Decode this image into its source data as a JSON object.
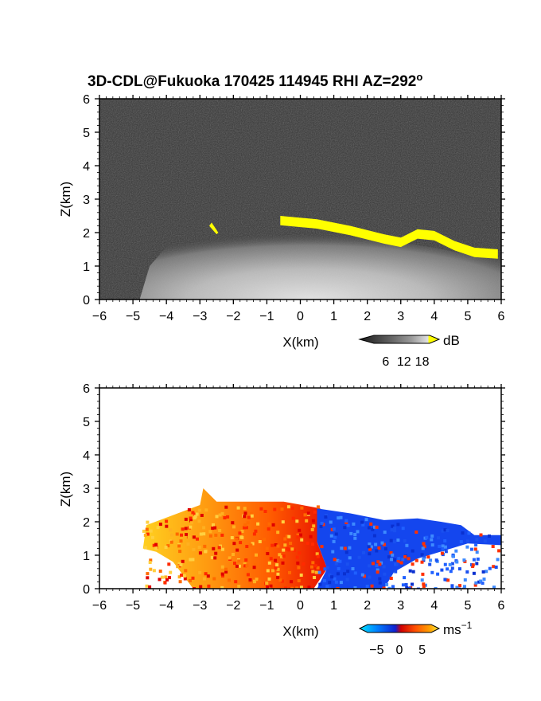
{
  "chart_data": [
    {
      "type": "heatmap",
      "title": "3D-CDL@Fukuoka 170425 114945 RHI AZ=292",
      "title_superscript": "o",
      "xlabel": "X(km)",
      "ylabel": "Z(km)",
      "xlim": [
        -6,
        6
      ],
      "ylim": [
        0,
        6
      ],
      "xticks": [
        "-6",
        "-5",
        "-4",
        "-3",
        "-2",
        "-1",
        "0",
        "1",
        "2",
        "3",
        "4",
        "5",
        "6"
      ],
      "yticks": [
        "0",
        "1",
        "2",
        "3",
        "4",
        "5",
        "6"
      ],
      "background": "grayscale noise",
      "colorbar": {
        "label": "dB",
        "ticks": [
          "6",
          "12",
          "18"
        ],
        "range": [
          0,
          21
        ],
        "colors": [
          "#1a1a1a",
          "#5a5a5a",
          "#9a9a9a",
          "#d8d8d8",
          "#ffff00"
        ]
      },
      "features": [
        {
          "name": "aerosol layer",
          "x_range": [
            -4.8,
            6
          ],
          "z_top": [
            2.3,
            2.6,
            2.2,
            1.6
          ],
          "value_dB": 12
        },
        {
          "name": "cloud base (saturated)",
          "x": [
            -0.6,
            0.5,
            1.5,
            2.5,
            3.0,
            3.5,
            4.0,
            4.6,
            5.2,
            5.9
          ],
          "z": [
            2.5,
            2.4,
            2.2,
            1.95,
            1.85,
            2.1,
            2.05,
            1.75,
            1.55,
            1.5
          ],
          "value_dB": 18
        }
      ]
    },
    {
      "type": "heatmap",
      "xlabel": "X(km)",
      "ylabel": "Z(km)",
      "xlim": [
        -6,
        6
      ],
      "ylim": [
        0,
        6
      ],
      "xticks": [
        "-6",
        "-5",
        "-4",
        "-3",
        "-2",
        "-1",
        "0",
        "1",
        "2",
        "3",
        "4",
        "5",
        "6"
      ],
      "yticks": [
        "0",
        "1",
        "2",
        "3",
        "4",
        "5",
        "6"
      ],
      "colorbar": {
        "label": "ms",
        "label_superscript": "−1",
        "ticks": [
          "−5",
          "0",
          "5"
        ],
        "range": [
          -7,
          7
        ],
        "colors": [
          "#00e5ff",
          "#0060ff",
          "#1020d0",
          "#d00000",
          "#ff4000",
          "#ff9000",
          "#ffe040"
        ]
      },
      "regions": [
        {
          "name": "positive velocity",
          "x_range": [
            -4.8,
            0.5
          ],
          "velocity_ms": 4
        },
        {
          "name": "negative velocity",
          "x_range": [
            0.5,
            6
          ],
          "velocity_ms": -3
        }
      ]
    }
  ]
}
